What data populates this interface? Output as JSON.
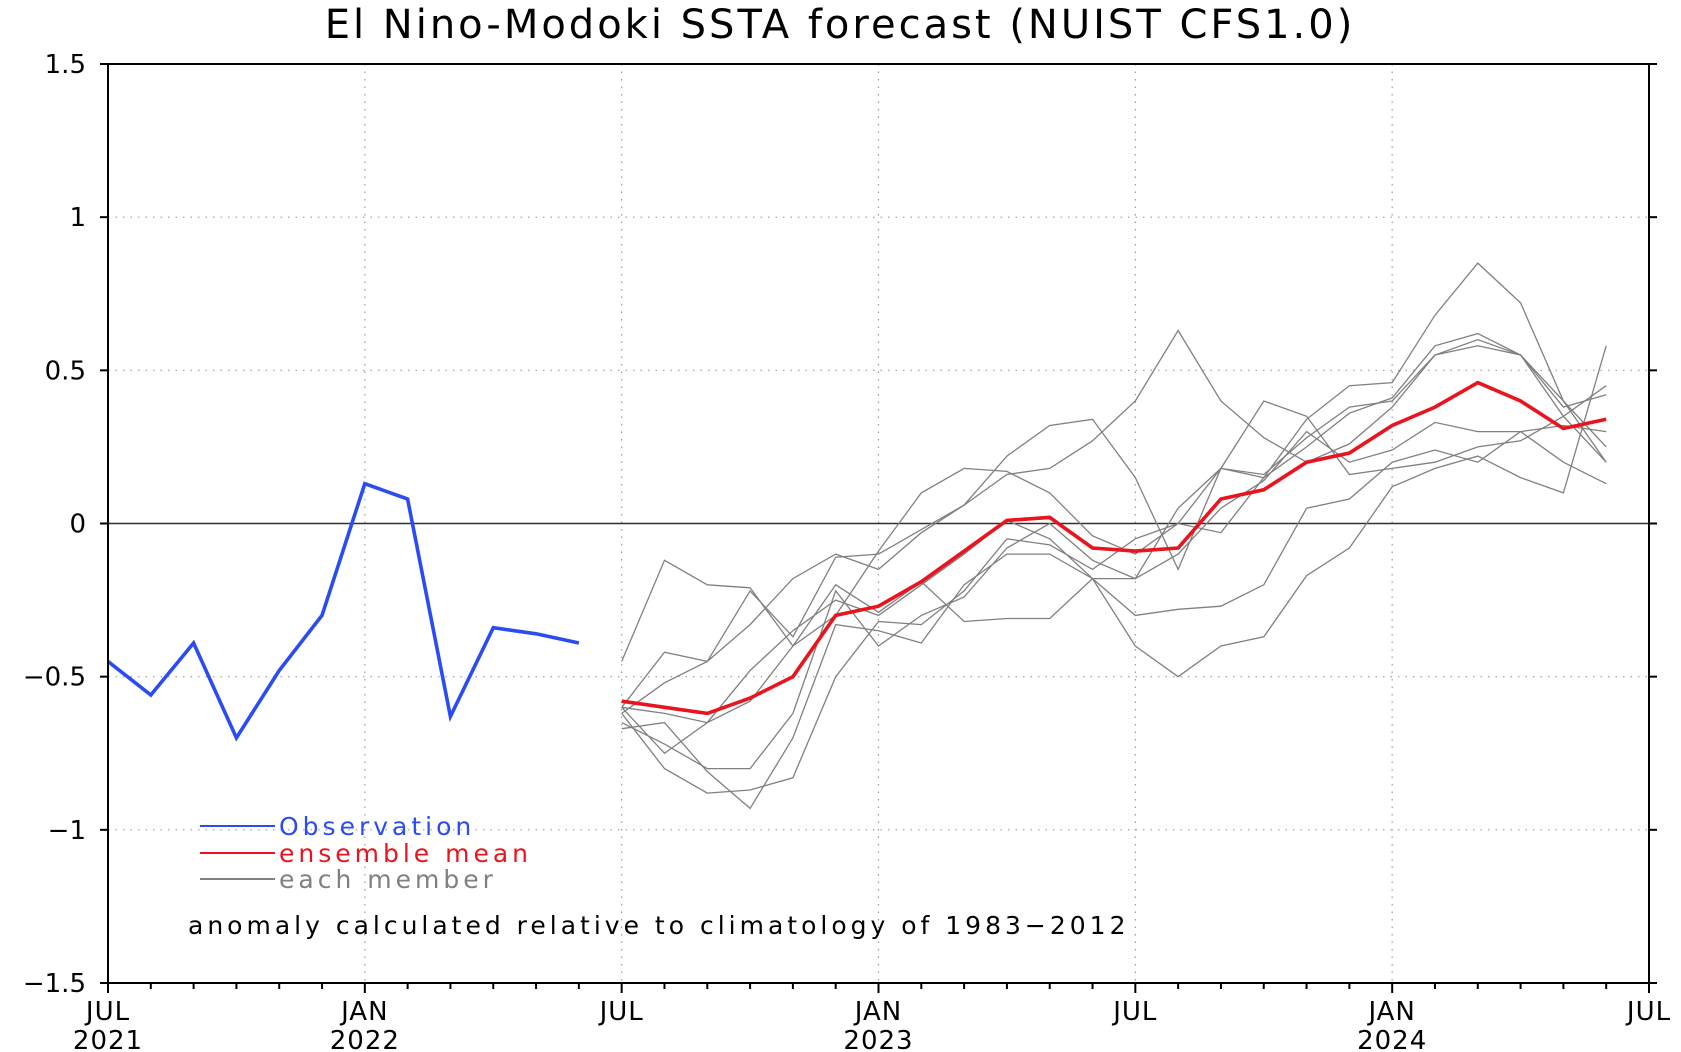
{
  "chart_data": {
    "type": "line",
    "title": "El Nino-Modoki SSTA forecast (NUIST CFS1.0)",
    "ylim": [
      -1.5,
      1.5
    ],
    "y_ticks": [
      1.5,
      1,
      0.5,
      0,
      -0.5,
      -1,
      -1.5
    ],
    "y_tick_labels": [
      "1.5",
      "1",
      "0.5",
      "0",
      "−0.5",
      "−1",
      "−1.5"
    ],
    "x_range": [
      "2021-07",
      "2024-07"
    ],
    "x_ticks": [
      {
        "date": "2021-07",
        "label1": "JUL",
        "label2": "2021"
      },
      {
        "date": "2022-01",
        "label1": "JAN",
        "label2": "2022"
      },
      {
        "date": "2022-07",
        "label1": "JUL",
        "label2": ""
      },
      {
        "date": "2023-01",
        "label1": "JAN",
        "label2": "2023"
      },
      {
        "date": "2023-07",
        "label1": "JUL",
        "label2": ""
      },
      {
        "date": "2024-01",
        "label1": "JAN",
        "label2": "2024"
      },
      {
        "date": "2024-07",
        "label1": "JUL",
        "label2": ""
      }
    ],
    "grid": "dotted",
    "zero_line": true,
    "series": [
      {
        "name": "Observation",
        "role": "observation",
        "color": "#2b4cf0",
        "x": [
          "2021-07",
          "2021-08",
          "2021-09",
          "2021-10",
          "2021-11",
          "2021-12",
          "2022-01",
          "2022-02",
          "2022-03",
          "2022-04",
          "2022-05",
          "2022-06"
        ],
        "values": [
          -0.45,
          -0.56,
          -0.39,
          -0.7,
          -0.48,
          -0.3,
          0.13,
          0.08,
          -0.63,
          -0.34,
          -0.36,
          -0.39
        ]
      },
      {
        "name": "ensemble mean",
        "role": "mean",
        "color": "#e8141e",
        "x": [
          "2022-07",
          "2022-08",
          "2022-09",
          "2022-10",
          "2022-11",
          "2022-12",
          "2023-01",
          "2023-02",
          "2023-03",
          "2023-04",
          "2023-05",
          "2023-06",
          "2023-07",
          "2023-08",
          "2023-09",
          "2023-10",
          "2023-11",
          "2023-12",
          "2024-01",
          "2024-02",
          "2024-03",
          "2024-04",
          "2024-05",
          "2024-06"
        ],
        "values": [
          -0.58,
          -0.6,
          -0.62,
          -0.57,
          -0.5,
          -0.3,
          -0.27,
          -0.19,
          -0.09,
          0.01,
          0.02,
          -0.08,
          -0.09,
          -0.08,
          0.08,
          0.11,
          0.2,
          0.23,
          0.32,
          0.38,
          0.46,
          0.4,
          0.31,
          0.34
        ]
      },
      {
        "name": "each member",
        "role": "member",
        "color": "#808080",
        "x": [
          "2022-07",
          "2022-08",
          "2022-09",
          "2022-10",
          "2022-11",
          "2022-12",
          "2023-01",
          "2023-02",
          "2023-03",
          "2023-04",
          "2023-05",
          "2023-06",
          "2023-07",
          "2023-08",
          "2023-09",
          "2023-10",
          "2023-11",
          "2023-12",
          "2024-01",
          "2024-02",
          "2024-03",
          "2024-04",
          "2024-05",
          "2024-06"
        ],
        "values": [
          -0.45,
          -0.12,
          -0.2,
          -0.21,
          -0.4,
          -0.3,
          -0.09,
          0.1,
          0.18,
          0.17,
          0.1,
          -0.04,
          -0.1,
          0.0,
          0.18,
          0.16,
          0.28,
          0.38,
          0.4,
          0.55,
          0.58,
          0.55,
          0.35,
          0.2
        ]
      },
      {
        "name": "",
        "role": "member",
        "color": "#808080",
        "x": [
          "2022-07",
          "2022-08",
          "2022-09",
          "2022-10",
          "2022-11",
          "2022-12",
          "2023-01",
          "2023-02",
          "2023-03",
          "2023-04",
          "2023-05",
          "2023-06",
          "2023-07",
          "2023-08",
          "2023-09",
          "2023-10",
          "2023-11",
          "2023-12",
          "2024-01",
          "2024-02",
          "2024-03",
          "2024-04",
          "2024-05",
          "2024-06"
        ],
        "values": [
          -0.6,
          -0.42,
          -0.45,
          -0.22,
          -0.37,
          -0.11,
          -0.1,
          -0.02,
          0.06,
          0.22,
          0.32,
          0.34,
          0.15,
          -0.15,
          0.18,
          0.15,
          0.34,
          0.45,
          0.46,
          0.68,
          0.85,
          0.72,
          0.4,
          0.2
        ]
      },
      {
        "name": "",
        "role": "member",
        "color": "#808080",
        "x": [
          "2022-07",
          "2022-08",
          "2022-09",
          "2022-10",
          "2022-11",
          "2022-12",
          "2023-01",
          "2023-02",
          "2023-03",
          "2023-04",
          "2023-05",
          "2023-06",
          "2023-07",
          "2023-08",
          "2023-09",
          "2023-10",
          "2023-11",
          "2023-12",
          "2024-01",
          "2024-02",
          "2024-03",
          "2024-04",
          "2024-05",
          "2024-06"
        ],
        "values": [
          -0.62,
          -0.52,
          -0.45,
          -0.33,
          -0.18,
          -0.1,
          -0.15,
          -0.03,
          0.06,
          0.16,
          0.18,
          0.27,
          0.4,
          0.63,
          0.4,
          0.28,
          0.2,
          0.26,
          0.38,
          0.55,
          0.6,
          0.55,
          0.4,
          0.25
        ]
      },
      {
        "name": "",
        "role": "member",
        "color": "#808080",
        "x": [
          "2022-07",
          "2022-08",
          "2022-09",
          "2022-10",
          "2022-11",
          "2022-12",
          "2023-01",
          "2023-02",
          "2023-03",
          "2023-04",
          "2023-05",
          "2023-06",
          "2023-07",
          "2023-08",
          "2023-09",
          "2023-10",
          "2023-11",
          "2023-12",
          "2024-01",
          "2024-02",
          "2024-03",
          "2024-04",
          "2024-05",
          "2024-06"
        ],
        "values": [
          -0.6,
          -0.75,
          -0.65,
          -0.48,
          -0.35,
          -0.25,
          -0.3,
          -0.2,
          -0.1,
          0.01,
          -0.05,
          -0.18,
          -0.18,
          0.05,
          0.18,
          0.4,
          0.35,
          0.16,
          0.18,
          0.2,
          0.25,
          0.27,
          0.35,
          0.45
        ]
      },
      {
        "name": "",
        "role": "member",
        "color": "#808080",
        "x": [
          "2022-07",
          "2022-08",
          "2022-09",
          "2022-10",
          "2022-11",
          "2022-12",
          "2023-01",
          "2023-02",
          "2023-03",
          "2023-04",
          "2023-05",
          "2023-06",
          "2023-07",
          "2023-08",
          "2023-09",
          "2023-10",
          "2023-11",
          "2023-12",
          "2024-01",
          "2024-02",
          "2024-03",
          "2024-04",
          "2024-05",
          "2024-06"
        ],
        "values": [
          -0.62,
          -0.8,
          -0.88,
          -0.87,
          -0.83,
          -0.5,
          -0.32,
          -0.33,
          -0.22,
          -0.05,
          -0.07,
          -0.15,
          -0.05,
          0.0,
          -0.03,
          0.15,
          0.25,
          0.36,
          0.41,
          0.58,
          0.62,
          0.55,
          0.38,
          0.42
        ]
      },
      {
        "name": "",
        "role": "member",
        "color": "#808080",
        "x": [
          "2022-07",
          "2022-08",
          "2022-09",
          "2022-10",
          "2022-11",
          "2022-12",
          "2023-01",
          "2023-02",
          "2023-03",
          "2023-04",
          "2023-05",
          "2023-06",
          "2023-07",
          "2023-08",
          "2023-09",
          "2023-10",
          "2023-11",
          "2023-12",
          "2024-01",
          "2024-02",
          "2024-03",
          "2024-04",
          "2024-05",
          "2024-06"
        ],
        "values": [
          -0.65,
          -0.72,
          -0.8,
          -0.8,
          -0.62,
          -0.22,
          -0.4,
          -0.3,
          -0.24,
          -0.08,
          0.0,
          -0.12,
          -0.18,
          -0.1,
          0.05,
          0.14,
          0.3,
          0.2,
          0.24,
          0.33,
          0.3,
          0.3,
          0.32,
          0.3
        ]
      },
      {
        "name": "",
        "role": "member",
        "color": "#808080",
        "x": [
          "2022-07",
          "2022-08",
          "2022-09",
          "2022-10",
          "2022-11",
          "2022-12",
          "2023-01",
          "2023-02",
          "2023-03",
          "2023-04",
          "2023-05",
          "2023-06",
          "2023-07",
          "2023-08",
          "2023-09",
          "2023-10",
          "2023-11",
          "2023-12",
          "2024-01",
          "2024-02",
          "2024-03",
          "2024-04",
          "2024-05",
          "2024-06"
        ],
        "values": [
          -0.67,
          -0.65,
          -0.81,
          -0.93,
          -0.7,
          -0.33,
          -0.35,
          -0.39,
          -0.2,
          -0.1,
          -0.1,
          -0.18,
          -0.4,
          -0.5,
          -0.4,
          -0.37,
          -0.17,
          -0.08,
          0.12,
          0.18,
          0.22,
          0.15,
          0.1,
          0.58
        ]
      },
      {
        "name": "",
        "role": "member",
        "color": "#808080",
        "x": [
          "2022-07",
          "2022-08",
          "2022-09",
          "2022-10",
          "2022-11",
          "2022-12",
          "2023-01",
          "2023-02",
          "2023-03",
          "2023-04",
          "2023-05",
          "2023-06",
          "2023-07",
          "2023-08",
          "2023-09",
          "2023-10",
          "2023-11",
          "2023-12",
          "2024-01",
          "2024-02",
          "2024-03",
          "2024-04",
          "2024-05",
          "2024-06"
        ],
        "values": [
          -0.6,
          -0.62,
          -0.65,
          -0.58,
          -0.4,
          -0.2,
          -0.29,
          -0.19,
          -0.32,
          -0.31,
          -0.31,
          -0.18,
          -0.3,
          -0.28,
          -0.27,
          -0.2,
          0.05,
          0.08,
          0.2,
          0.24,
          0.2,
          0.3,
          0.2,
          0.13
        ]
      }
    ],
    "legend": {
      "placement": "bottom-left",
      "entries": [
        {
          "label": "Observation",
          "color": "#2b4cf0"
        },
        {
          "label": "ensemble mean",
          "color": "#e8141e"
        },
        {
          "label": "each member",
          "color": "#808080"
        }
      ]
    },
    "annotation": "anomaly calculated relative to climatology of 1983−2012"
  }
}
